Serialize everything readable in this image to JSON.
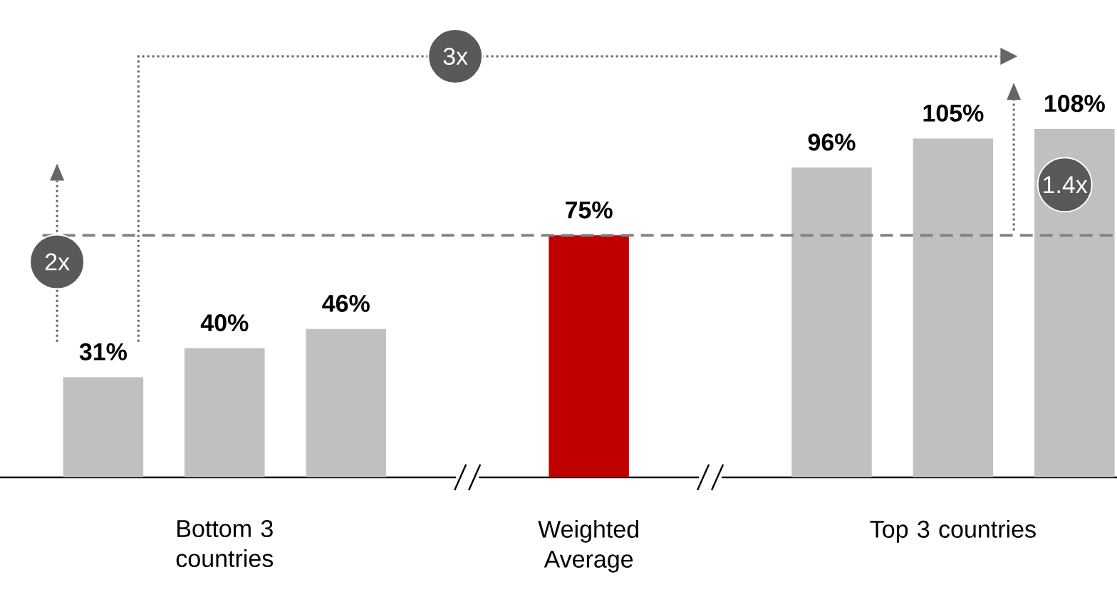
{
  "chart_data": {
    "type": "bar",
    "categories": [
      null,
      "Bottom 3 countries",
      null,
      null,
      "Weighted Average",
      null,
      null,
      "Top 3 countries",
      null
    ],
    "values": [
      31,
      40,
      46,
      null,
      75,
      null,
      96,
      105,
      108
    ],
    "colors": [
      "#c0c0c0",
      "#c0c0c0",
      "#c0c0c0",
      "#c0c0c0",
      "#c00000",
      "#c0c0c0",
      "#c0c0c0",
      "#c0c0c0",
      "#c0c0c0"
    ],
    "value_labels": [
      "31%",
      "40%",
      "46%",
      null,
      "75%",
      null,
      "96%",
      "105%",
      "108%"
    ],
    "ref_lines": [
      {
        "axis": "y",
        "value": 75,
        "color": "#808080",
        "line_style": "dashed"
      }
    ],
    "annotations": [
      "3x",
      "2x",
      "1.4x"
    ]
  }
}
